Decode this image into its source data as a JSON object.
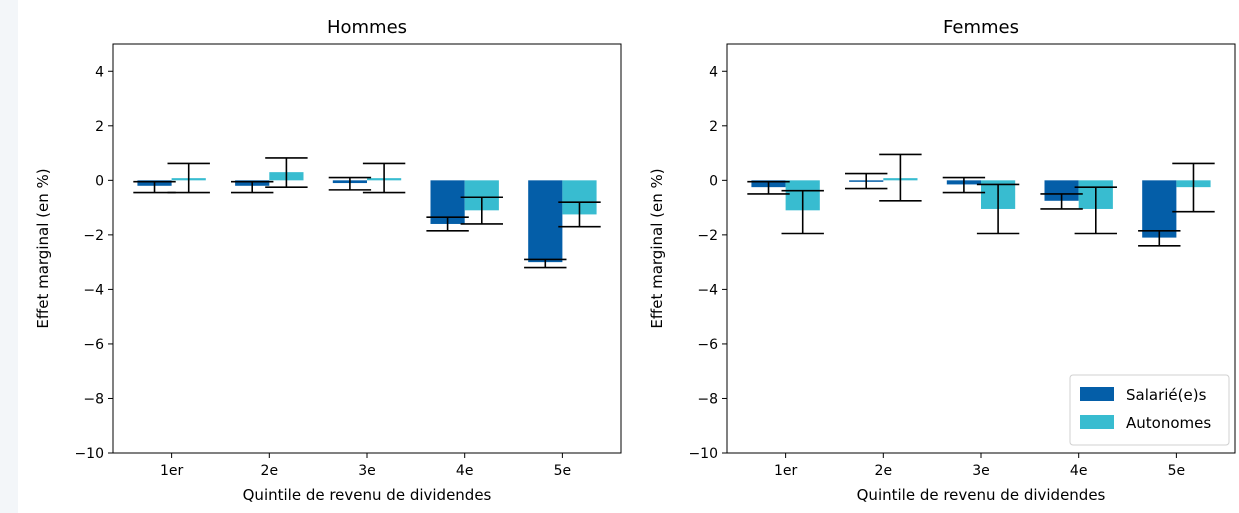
{
  "chart_data": [
    {
      "type": "bar",
      "title": "Hommes",
      "xlabel": "Quintile de revenu de dividendes",
      "ylabel": "Effet marginal (en %)",
      "categories": [
        "1er",
        "2e",
        "3e",
        "4e",
        "5e"
      ],
      "ylim": [
        -10,
        5
      ],
      "yticks": [
        -10,
        -8,
        -6,
        -4,
        -2,
        0,
        2,
        4
      ],
      "yticklabels": [
        "−10",
        "−8",
        "−6",
        "−4",
        "−2",
        "0",
        "2",
        "4"
      ],
      "series": [
        {
          "name": "Salarié(e)s",
          "color": "#045ea8",
          "values": [
            -0.2,
            -0.2,
            -0.1,
            -1.6,
            -3.0
          ],
          "ci_low": [
            -0.45,
            -0.45,
            -0.35,
            -1.85,
            -3.2
          ],
          "ci_high": [
            -0.05,
            -0.05,
            0.1,
            -1.35,
            -2.9
          ]
        },
        {
          "name": "Autonomes",
          "color": "#38bcd0",
          "values": [
            0.08,
            0.3,
            0.08,
            -1.1,
            -1.25
          ],
          "ci_low": [
            -0.45,
            -0.25,
            -0.45,
            -1.6,
            -1.7
          ],
          "ci_high": [
            0.62,
            0.82,
            0.62,
            -0.62,
            -0.8
          ]
        }
      ]
    },
    {
      "type": "bar",
      "title": "Femmes",
      "xlabel": "Quintile de revenu de dividendes",
      "ylabel": "Effet marginal (en %)",
      "categories": [
        "1er",
        "2e",
        "3e",
        "4e",
        "5e"
      ],
      "ylim": [
        -10,
        5
      ],
      "yticks": [
        -10,
        -8,
        -6,
        -4,
        -2,
        0,
        2,
        4
      ],
      "yticklabels": [
        "−10",
        "−8",
        "−6",
        "−4",
        "−2",
        "0",
        "2",
        "4"
      ],
      "legend_position": "lower-right",
      "series": [
        {
          "name": "Salarié(e)s",
          "color": "#045ea8",
          "values": [
            -0.25,
            0.0,
            -0.15,
            -0.75,
            -2.1
          ],
          "ci_low": [
            -0.5,
            -0.3,
            -0.45,
            -1.05,
            -2.4
          ],
          "ci_high": [
            -0.05,
            0.25,
            0.1,
            -0.5,
            -1.85
          ]
        },
        {
          "name": "Autonomes",
          "color": "#38bcd0",
          "values": [
            -1.1,
            0.08,
            -1.05,
            -1.05,
            -0.25
          ],
          "ci_low": [
            -1.95,
            -0.75,
            -1.95,
            -1.95,
            -1.15
          ],
          "ci_high": [
            -0.38,
            0.95,
            -0.15,
            -0.25,
            0.62
          ]
        }
      ]
    }
  ]
}
